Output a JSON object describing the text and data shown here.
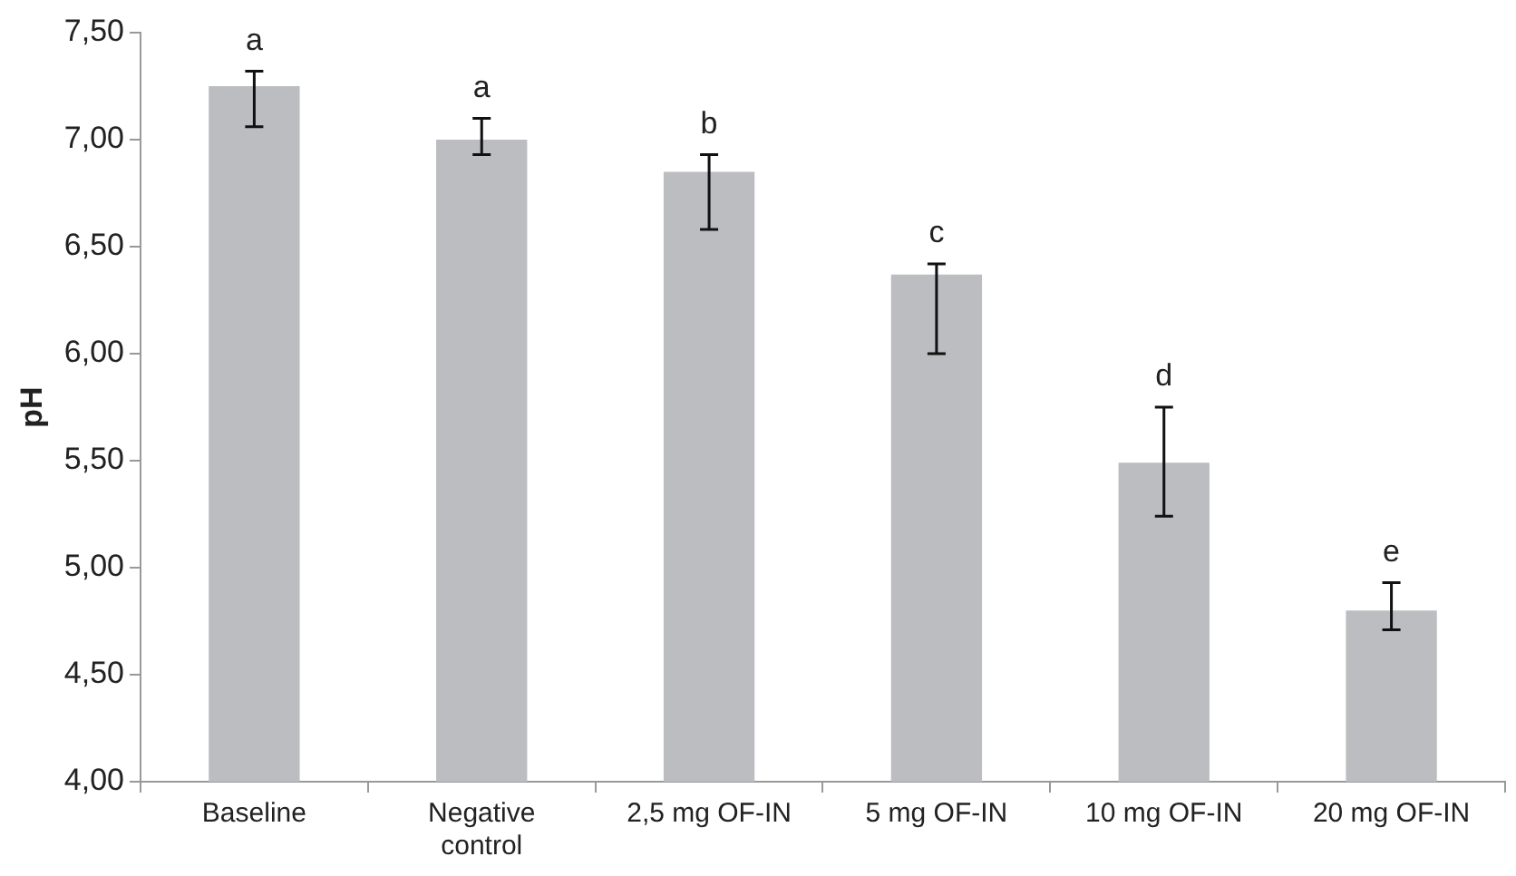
{
  "chart_data": {
    "type": "bar",
    "ylabel": "pH",
    "categories": [
      "Baseline",
      "Negative control",
      "2,5 mg OF-IN",
      "5 mg OF-IN",
      "10 mg OF-IN",
      "20 mg OF-IN"
    ],
    "values": [
      7.25,
      7.0,
      6.85,
      6.37,
      5.49,
      4.8
    ],
    "errors": [
      [
        7.06,
        7.32
      ],
      [
        6.93,
        7.1
      ],
      [
        6.58,
        6.93
      ],
      [
        6.0,
        6.42
      ],
      [
        5.24,
        5.75
      ],
      [
        4.71,
        4.93
      ]
    ],
    "color": "#bcbdc0",
    "ylim": [
      4,
      7.5
    ],
    "yticks": [
      {
        "value": 4,
        "label": "4,00"
      },
      {
        "value": 4.5,
        "label": "4,50"
      },
      {
        "value": 5,
        "label": "5,00"
      },
      {
        "value": 5.5,
        "label": "5,50"
      },
      {
        "value": 6,
        "label": "6,00"
      },
      {
        "value": 6.5,
        "label": "6,50"
      },
      {
        "value": 7,
        "label": "7,00"
      },
      {
        "value": 7.5,
        "label": "7,50"
      }
    ],
    "annotations": [
      {
        "text": "a",
        "x": "Baseline",
        "y": 7.32
      },
      {
        "text": "a",
        "x": "Negative control",
        "y": 7.1
      },
      {
        "text": "b",
        "x": "2,5 mg OF-IN",
        "y": 6.93
      },
      {
        "text": "c",
        "x": "5 mg OF-IN",
        "y": 6.42
      },
      {
        "text": "d",
        "x": "10 mg OF-IN",
        "y": 5.75
      },
      {
        "text": "e",
        "x": "20 mg OF-IN",
        "y": 4.93
      }
    ],
    "grid": false,
    "legend": false
  }
}
